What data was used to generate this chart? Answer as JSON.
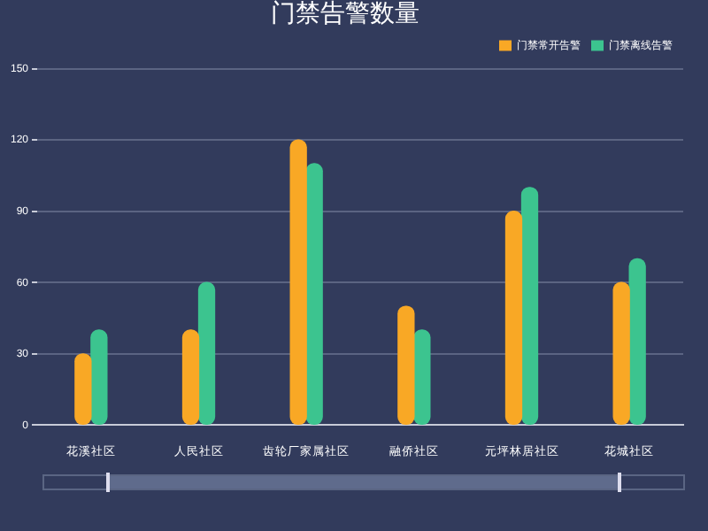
{
  "chart_data": {
    "type": "bar",
    "title": "门禁告警数量",
    "categories": [
      "花溪社区",
      "人民社区",
      "齿轮厂家属社区",
      "融侨社区",
      "元坪林居社区",
      "花城社区"
    ],
    "series": [
      {
        "name": "门禁常开告警",
        "color": "#f9a825",
        "values": [
          30,
          40,
          120,
          50,
          90,
          60
        ]
      },
      {
        "name": "门禁离线告警",
        "color": "#3cc48f",
        "values": [
          40,
          60,
          110,
          40,
          100,
          70
        ]
      }
    ],
    "ylim": [
      0,
      150
    ],
    "yticks": [
      0,
      30,
      60,
      90,
      120,
      150
    ],
    "grid": "y",
    "legend": "top right"
  }
}
